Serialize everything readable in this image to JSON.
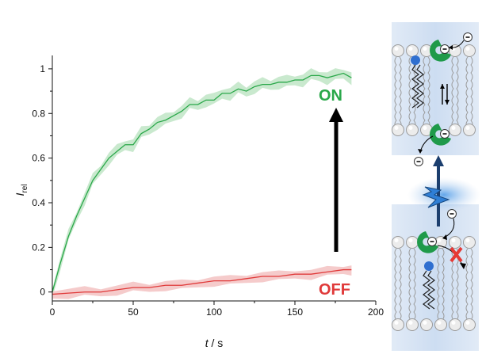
{
  "chart_data": {
    "type": "line",
    "xlabel": {
      "italic": "t",
      "rest": " / s"
    },
    "ylabel": {
      "main": "I",
      "sub": "rel"
    },
    "xlim": [
      0,
      200
    ],
    "ylim": [
      -0.04,
      1.06
    ],
    "xticks": [
      0,
      50,
      100,
      150,
      200
    ],
    "yticks": [
      0,
      0.2,
      0.4,
      0.6,
      0.8,
      1
    ],
    "xtick_labels": [
      "0",
      "50",
      "100",
      "150",
      "200"
    ],
    "ytick_labels": [
      "0",
      "0.2",
      "0.4",
      "0.6",
      "0.8",
      "1"
    ],
    "grid": false,
    "series": [
      {
        "name": "ON",
        "color": "#2aa84a",
        "band_color": "#bfe5c6",
        "x": [
          0,
          5,
          10,
          15,
          20,
          25,
          30,
          35,
          40,
          45,
          50,
          55,
          60,
          65,
          70,
          75,
          80,
          85,
          90,
          95,
          100,
          105,
          110,
          115,
          120,
          125,
          130,
          135,
          140,
          145,
          150,
          155,
          160,
          165,
          170,
          175,
          180,
          185
        ],
        "values": [
          0.0,
          0.13,
          0.25,
          0.34,
          0.42,
          0.5,
          0.55,
          0.6,
          0.63,
          0.66,
          0.66,
          0.71,
          0.73,
          0.76,
          0.77,
          0.79,
          0.81,
          0.84,
          0.84,
          0.86,
          0.86,
          0.89,
          0.89,
          0.91,
          0.9,
          0.92,
          0.93,
          0.93,
          0.94,
          0.94,
          0.95,
          0.95,
          0.97,
          0.97,
          0.96,
          0.97,
          0.98,
          0.96
        ],
        "band_halfwidth": 0.015
      },
      {
        "name": "OFF",
        "color": "#e03a3a",
        "band_color": "#f3c2c2",
        "x": [
          0,
          10,
          20,
          30,
          40,
          50,
          60,
          70,
          80,
          90,
          100,
          110,
          120,
          130,
          140,
          150,
          160,
          170,
          180,
          185
        ],
        "values": [
          -0.01,
          -0.005,
          0.0,
          0.0,
          0.01,
          0.02,
          0.02,
          0.03,
          0.03,
          0.04,
          0.05,
          0.05,
          0.06,
          0.07,
          0.07,
          0.08,
          0.08,
          0.09,
          0.1,
          0.1
        ],
        "band_halfwidth": 0.012
      }
    ],
    "annotations": [
      {
        "text": "ON",
        "series": "ON"
      },
      {
        "text": "OFF",
        "series": "OFF"
      }
    ]
  },
  "colors": {
    "on": "#2aa84a",
    "off": "#e03a3a",
    "arrow": "#000000",
    "membrane_tint": "#c9daf0",
    "lipid_head": "#e8e8e8",
    "receptor": "#1f9a4a",
    "anchor": "#2f6fd0",
    "blocked": "#e53935",
    "light": "#2f7fd6"
  },
  "icons": [
    "membrane-schematic",
    "lightning-icon",
    "blocked-x-icon"
  ]
}
